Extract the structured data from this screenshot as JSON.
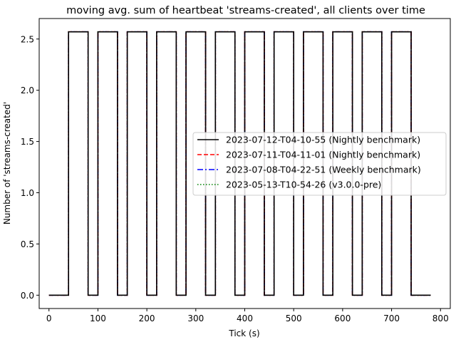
{
  "chart_data": {
    "type": "line",
    "title": "moving avg. sum of heartbeat 'streams-created', all clients over time",
    "xlabel": "Tick (s)",
    "ylabel": "Number of 'streams-created'",
    "xlim": [
      -20,
      820
    ],
    "ylim": [
      -0.13,
      2.7
    ],
    "xticks": [
      0,
      100,
      200,
      300,
      400,
      500,
      600,
      700,
      800
    ],
    "yticks": [
      0.0,
      0.5,
      1.0,
      1.5,
      2.0,
      2.5
    ],
    "ytick_labels": [
      "0.0",
      "0.5",
      "1.0",
      "1.5",
      "2.0",
      "2.5"
    ],
    "grid": false,
    "legend_position": "center-right",
    "high_value": 2.57,
    "low_value": 0.0,
    "x": [
      0,
      40,
      40,
      80,
      80,
      100,
      100,
      140,
      140,
      160,
      160,
      200,
      200,
      220,
      220,
      260,
      260,
      280,
      280,
      320,
      320,
      340,
      340,
      380,
      380,
      400,
      400,
      440,
      440,
      460,
      460,
      500,
      500,
      520,
      520,
      560,
      560,
      580,
      580,
      620,
      620,
      640,
      640,
      680,
      680,
      700,
      700,
      740,
      740,
      780
    ],
    "y": [
      0,
      0,
      2.57,
      2.57,
      0,
      0,
      2.57,
      2.57,
      0,
      0,
      2.57,
      2.57,
      0,
      0,
      2.57,
      2.57,
      0,
      0,
      2.57,
      2.57,
      0,
      0,
      2.57,
      2.57,
      0,
      0,
      2.57,
      2.57,
      0,
      0,
      2.57,
      2.57,
      0,
      0,
      2.57,
      2.57,
      0,
      0,
      2.57,
      2.57,
      0,
      0,
      2.57,
      2.57,
      0,
      0,
      2.57,
      2.57,
      0,
      0
    ],
    "series": [
      {
        "name": "2023-07-12-T04-10-55 (Nightly benchmark)",
        "color": "#000000",
        "style": "solid"
      },
      {
        "name": "2023-07-11-T04-11-01 (Nightly benchmark)",
        "color": "#ff0000",
        "style": "dashed"
      },
      {
        "name": "2023-07-08-T04-22-51 (Weekly benchmark)",
        "color": "#0000ff",
        "style": "dashdot"
      },
      {
        "name": "2023-05-13-T10-54-26 (v3.0.0-pre)",
        "color": "#008000",
        "style": "dotted"
      }
    ]
  }
}
